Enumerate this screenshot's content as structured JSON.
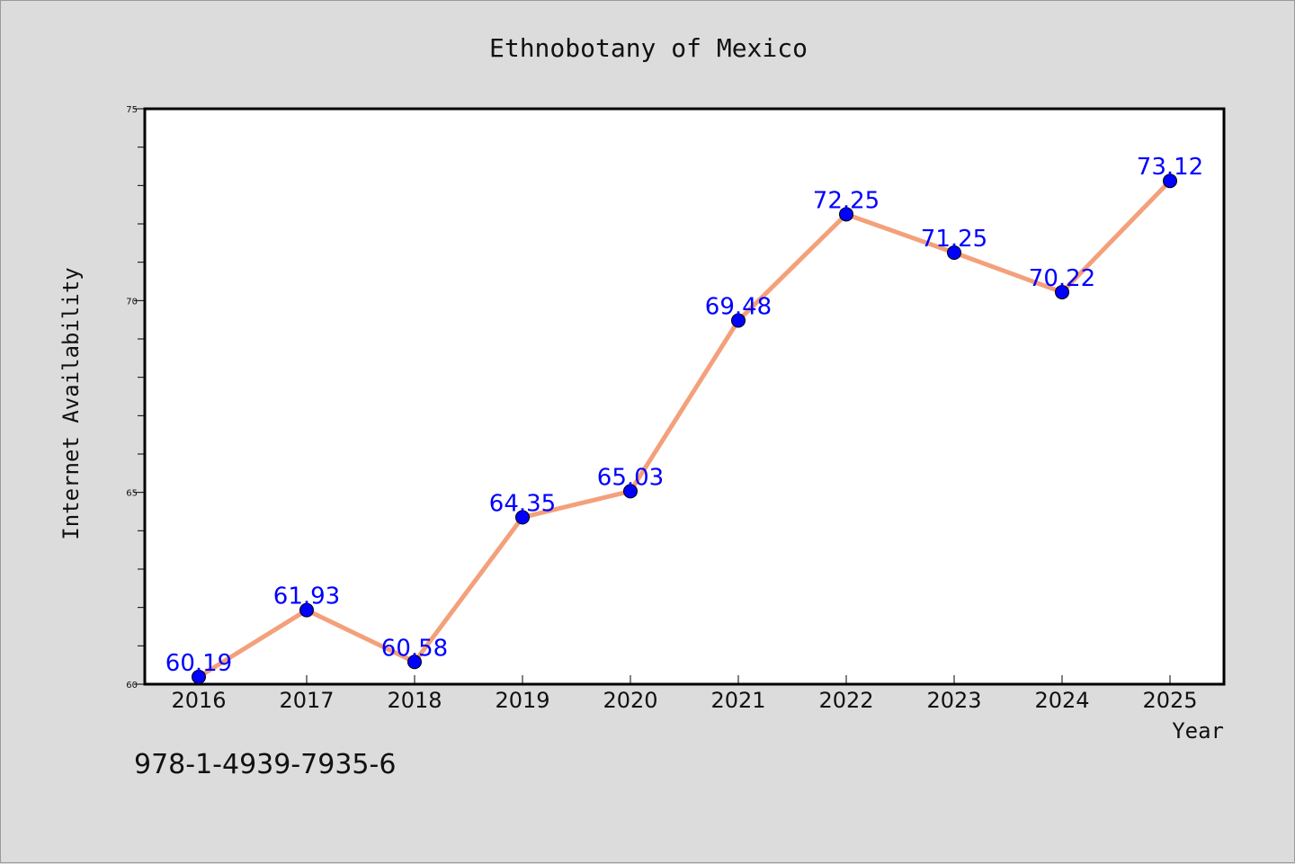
{
  "isbn": "978-1-4939-7935-6",
  "colors": {
    "background": "#dcdcdc",
    "plot_area": "#ffffff",
    "line": "#f4a07a",
    "marker": "#0000ff",
    "data_label": "#0000ff"
  },
  "chart_data": {
    "type": "line",
    "title": "Ethnobotany of Mexico",
    "xlabel": "Year",
    "ylabel": "Internet Availability",
    "categories": [
      "2016",
      "2017",
      "2018",
      "2019",
      "2020",
      "2021",
      "2022",
      "2023",
      "2024",
      "2025"
    ],
    "series": [
      {
        "values": [
          60.19,
          61.93,
          60.58,
          64.35,
          65.03,
          69.48,
          72.25,
          71.25,
          70.22,
          73.12
        ]
      }
    ],
    "data_labels": [
      "60.19",
      "61.93",
      "60.58",
      "64.35",
      "65.03",
      "69.48",
      "72.25",
      "71.25",
      "70.22",
      "73.12"
    ],
    "ylim": [
      60,
      75
    ],
    "yticks": [
      60,
      65,
      70,
      75
    ],
    "ytick_labels": [
      "60",
      "65",
      "70",
      "75"
    ],
    "y_minor_step": 1,
    "grid": false,
    "legend": "none"
  }
}
